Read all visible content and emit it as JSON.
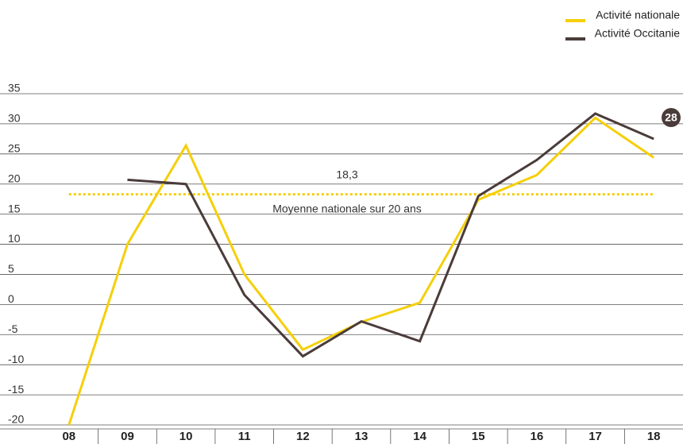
{
  "chart_data": {
    "type": "line",
    "categories": [
      "08",
      "09",
      "10",
      "11",
      "12",
      "13",
      "14",
      "15",
      "16",
      "17",
      "18"
    ],
    "series": [
      {
        "name": "Activité nationale",
        "color": "#f5cf0a",
        "values": [
          -20,
          10,
          26.4,
          5,
          -7.5,
          -2.9,
          0.3,
          17.4,
          21.5,
          31,
          24.4
        ]
      },
      {
        "name": "Activité Occitanie",
        "color": "#4a3c3a",
        "values": [
          null,
          20.7,
          20,
          1.6,
          -8.6,
          -2.8,
          -6.1,
          18,
          24,
          31.7,
          27.5
        ],
        "value_labels": [
          null,
          null,
          null,
          null,
          null,
          null,
          null,
          null,
          null,
          null,
          "28"
        ]
      }
    ],
    "ylim": [
      -20,
      35
    ],
    "yticks": [
      -20,
      -15,
      -10,
      -5,
      0,
      5,
      10,
      15,
      20,
      25,
      30,
      35
    ],
    "grid": true,
    "reference": {
      "value": 18.3,
      "label": "18,3",
      "text": "Moyenne nationale sur 20 ans",
      "color": "#f5cf0a"
    },
    "legend": "top-right"
  }
}
